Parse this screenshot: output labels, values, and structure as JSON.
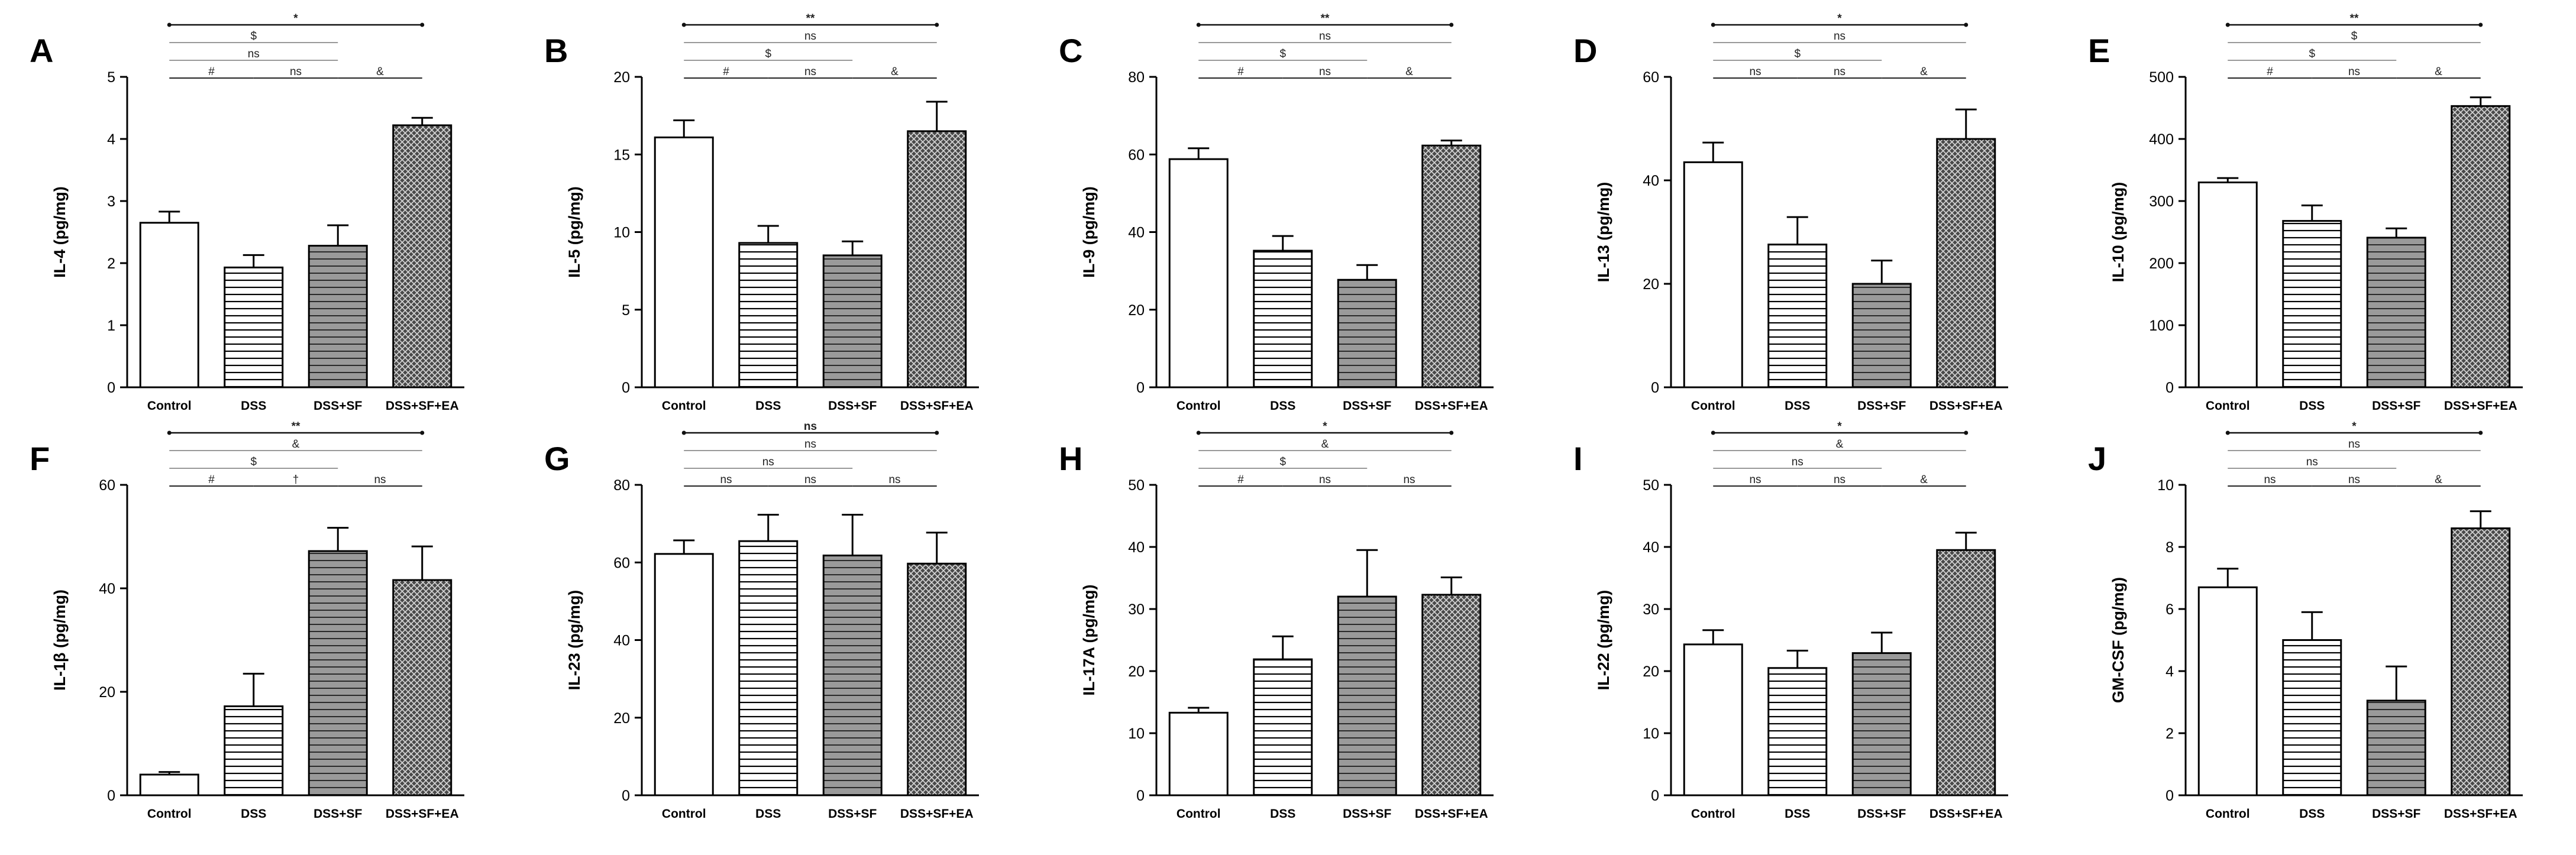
{
  "chart_data": [
    {
      "type": "bar",
      "panel": "A",
      "ylabel": "IL-4 (pg/mg)",
      "categories": [
        "Control",
        "DSS",
        "DSS+SF",
        "DSS+SF+EA"
      ],
      "values": [
        2.65,
        1.93,
        2.28,
        4.22
      ],
      "errors": [
        0.18,
        0.2,
        0.33,
        0.12
      ],
      "ylim": [
        0,
        5
      ],
      "yticks": [
        0,
        1,
        2,
        3,
        4,
        5
      ],
      "brackets": [
        {
          "from": 0,
          "to": 3,
          "label": "*"
        },
        {
          "from": 0,
          "to": 2,
          "label": "$"
        },
        {
          "from": 0,
          "to": 2,
          "label": "ns"
        },
        {
          "from": 0,
          "to": 1,
          "label": "#"
        },
        {
          "from": 1,
          "to": 2,
          "label": "ns"
        },
        {
          "from": 2,
          "to": 3,
          "label": "&"
        }
      ]
    },
    {
      "type": "bar",
      "panel": "B",
      "ylabel": "IL-5 (pg/mg)",
      "categories": [
        "Control",
        "DSS",
        "DSS+SF",
        "DSS+SF+EA"
      ],
      "values": [
        16.1,
        9.3,
        8.5,
        16.5
      ],
      "errors": [
        1.1,
        1.1,
        0.9,
        1.9
      ],
      "ylim": [
        0,
        20
      ],
      "yticks": [
        0,
        5,
        10,
        15,
        20
      ],
      "brackets": [
        {
          "from": 0,
          "to": 3,
          "label": "**"
        },
        {
          "from": 0,
          "to": 3,
          "label": "ns"
        },
        {
          "from": 0,
          "to": 2,
          "label": "$"
        },
        {
          "from": 0,
          "to": 1,
          "label": "#"
        },
        {
          "from": 1,
          "to": 2,
          "label": "ns"
        },
        {
          "from": 2,
          "to": 3,
          "label": "&"
        }
      ]
    },
    {
      "type": "bar",
      "panel": "C",
      "ylabel": "IL-9 (pg/mg)",
      "categories": [
        "Control",
        "DSS",
        "DSS+SF",
        "DSS+SF+EA"
      ],
      "values": [
        58.8,
        35.2,
        27.7,
        62.3
      ],
      "errors": [
        2.8,
        3.8,
        3.8,
        1.3
      ],
      "ylim": [
        0,
        80
      ],
      "yticks": [
        0,
        20,
        40,
        60,
        80
      ],
      "brackets": [
        {
          "from": 0,
          "to": 3,
          "label": "**"
        },
        {
          "from": 0,
          "to": 3,
          "label": "ns"
        },
        {
          "from": 0,
          "to": 2,
          "label": "$"
        },
        {
          "from": 0,
          "to": 1,
          "label": "#"
        },
        {
          "from": 1,
          "to": 2,
          "label": "ns"
        },
        {
          "from": 2,
          "to": 3,
          "label": "&"
        }
      ]
    },
    {
      "type": "bar",
      "panel": "D",
      "ylabel": "IL-13 (pg/mg)",
      "categories": [
        "Control",
        "DSS",
        "DSS+SF",
        "DSS+SF+EA"
      ],
      "values": [
        43.5,
        27.6,
        20.0,
        48.0
      ],
      "errors": [
        3.8,
        5.3,
        4.5,
        5.7
      ],
      "ylim": [
        0,
        60
      ],
      "yticks": [
        0,
        20,
        40,
        60
      ],
      "brackets": [
        {
          "from": 0,
          "to": 3,
          "label": "*"
        },
        {
          "from": 0,
          "to": 3,
          "label": "ns"
        },
        {
          "from": 0,
          "to": 2,
          "label": "$"
        },
        {
          "from": 0,
          "to": 1,
          "label": "ns"
        },
        {
          "from": 1,
          "to": 2,
          "label": "ns"
        },
        {
          "from": 2,
          "to": 3,
          "label": "&"
        }
      ]
    },
    {
      "type": "bar",
      "panel": "E",
      "ylabel": "IL-10 (pg/mg)",
      "categories": [
        "Control",
        "DSS",
        "DSS+SF",
        "DSS+SF+EA"
      ],
      "values": [
        330,
        268,
        241,
        453
      ],
      "errors": [
        7,
        25,
        15,
        14
      ],
      "ylim": [
        0,
        500
      ],
      "yticks": [
        0,
        100,
        200,
        300,
        400,
        500
      ],
      "brackets": [
        {
          "from": 0,
          "to": 3,
          "label": "**"
        },
        {
          "from": 0,
          "to": 3,
          "label": "$"
        },
        {
          "from": 0,
          "to": 2,
          "label": "$"
        },
        {
          "from": 0,
          "to": 1,
          "label": "#"
        },
        {
          "from": 1,
          "to": 2,
          "label": "ns"
        },
        {
          "from": 2,
          "to": 3,
          "label": "&"
        }
      ]
    },
    {
      "type": "bar",
      "panel": "F",
      "ylabel": "IL-1β (pg/mg)",
      "categories": [
        "Control",
        "DSS",
        "DSS+SF",
        "DSS+SF+EA"
      ],
      "values": [
        4.0,
        17.2,
        47.2,
        41.6
      ],
      "errors": [
        0.5,
        6.3,
        4.5,
        6.5
      ],
      "ylim": [
        0,
        60
      ],
      "yticks": [
        0,
        20,
        40,
        60
      ],
      "brackets": [
        {
          "from": 0,
          "to": 3,
          "label": "**"
        },
        {
          "from": 0,
          "to": 3,
          "label": "&"
        },
        {
          "from": 0,
          "to": 2,
          "label": "$"
        },
        {
          "from": 0,
          "to": 1,
          "label": "#"
        },
        {
          "from": 1,
          "to": 2,
          "label": "†"
        },
        {
          "from": 2,
          "to": 3,
          "label": "ns"
        }
      ]
    },
    {
      "type": "bar",
      "panel": "G",
      "ylabel": "IL-23 (pg/mg)",
      "categories": [
        "Control",
        "DSS",
        "DSS+SF",
        "DSS+SF+EA"
      ],
      "values": [
        62.2,
        65.5,
        61.8,
        59.7
      ],
      "errors": [
        3.5,
        6.8,
        10.5,
        8.0
      ],
      "ylim": [
        0,
        80
      ],
      "yticks": [
        0,
        20,
        40,
        60,
        80
      ],
      "brackets": [
        {
          "from": 0,
          "to": 3,
          "label": "ns"
        },
        {
          "from": 0,
          "to": 3,
          "label": "ns"
        },
        {
          "from": 0,
          "to": 2,
          "label": "ns"
        },
        {
          "from": 0,
          "to": 1,
          "label": "ns"
        },
        {
          "from": 1,
          "to": 2,
          "label": "ns"
        },
        {
          "from": 2,
          "to": 3,
          "label": "ns"
        }
      ]
    },
    {
      "type": "bar",
      "panel": "H",
      "ylabel": "IL-17A (pg/mg)",
      "categories": [
        "Control",
        "DSS",
        "DSS+SF",
        "DSS+SF+EA"
      ],
      "values": [
        13.3,
        21.9,
        32.0,
        32.3
      ],
      "errors": [
        0.8,
        3.7,
        7.5,
        2.8
      ],
      "ylim": [
        0,
        50
      ],
      "yticks": [
        0,
        10,
        20,
        30,
        40,
        50
      ],
      "brackets": [
        {
          "from": 0,
          "to": 3,
          "label": "*"
        },
        {
          "from": 0,
          "to": 3,
          "label": "&"
        },
        {
          "from": 0,
          "to": 2,
          "label": "$"
        },
        {
          "from": 0,
          "to": 1,
          "label": "#"
        },
        {
          "from": 1,
          "to": 2,
          "label": "ns"
        },
        {
          "from": 2,
          "to": 3,
          "label": "ns"
        }
      ]
    },
    {
      "type": "bar",
      "panel": "I",
      "ylabel": "IL-22 (pg/mg)",
      "categories": [
        "Control",
        "DSS",
        "DSS+SF",
        "DSS+SF+EA"
      ],
      "values": [
        24.3,
        20.5,
        22.9,
        39.5
      ],
      "errors": [
        2.3,
        2.8,
        3.3,
        2.8
      ],
      "ylim": [
        0,
        50
      ],
      "yticks": [
        0,
        10,
        20,
        30,
        40,
        50
      ],
      "brackets": [
        {
          "from": 0,
          "to": 3,
          "label": "*"
        },
        {
          "from": 0,
          "to": 3,
          "label": "&"
        },
        {
          "from": 0,
          "to": 2,
          "label": "ns"
        },
        {
          "from": 0,
          "to": 1,
          "label": "ns"
        },
        {
          "from": 1,
          "to": 2,
          "label": "ns"
        },
        {
          "from": 2,
          "to": 3,
          "label": "&"
        }
      ]
    },
    {
      "type": "bar",
      "panel": "J",
      "ylabel": "GM-CSF (pg/mg)",
      "categories": [
        "Control",
        "DSS",
        "DSS+SF",
        "DSS+SF+EA"
      ],
      "values": [
        6.7,
        5.0,
        3.05,
        8.6
      ],
      "errors": [
        0.6,
        0.9,
        1.1,
        0.55
      ],
      "ylim": [
        0,
        10
      ],
      "yticks": [
        0,
        2,
        4,
        6,
        8,
        10
      ],
      "brackets": [
        {
          "from": 0,
          "to": 3,
          "label": "*"
        },
        {
          "from": 0,
          "to": 3,
          "label": "ns"
        },
        {
          "from": 0,
          "to": 2,
          "label": "ns"
        },
        {
          "from": 0,
          "to": 1,
          "label": "ns"
        },
        {
          "from": 1,
          "to": 2,
          "label": "ns"
        },
        {
          "from": 2,
          "to": 3,
          "label": "&"
        }
      ]
    }
  ],
  "style": {
    "bar_fills": [
      "white",
      "horizontal-stripes",
      "gray-stripes",
      "crosshatch"
    ],
    "colors": {
      "axis": "#000000",
      "bracket_dark": "#111111",
      "bracket_light": "#999999",
      "gray_bar": "#9a9a9a",
      "hatch_bg": "#4a4a4a"
    }
  }
}
